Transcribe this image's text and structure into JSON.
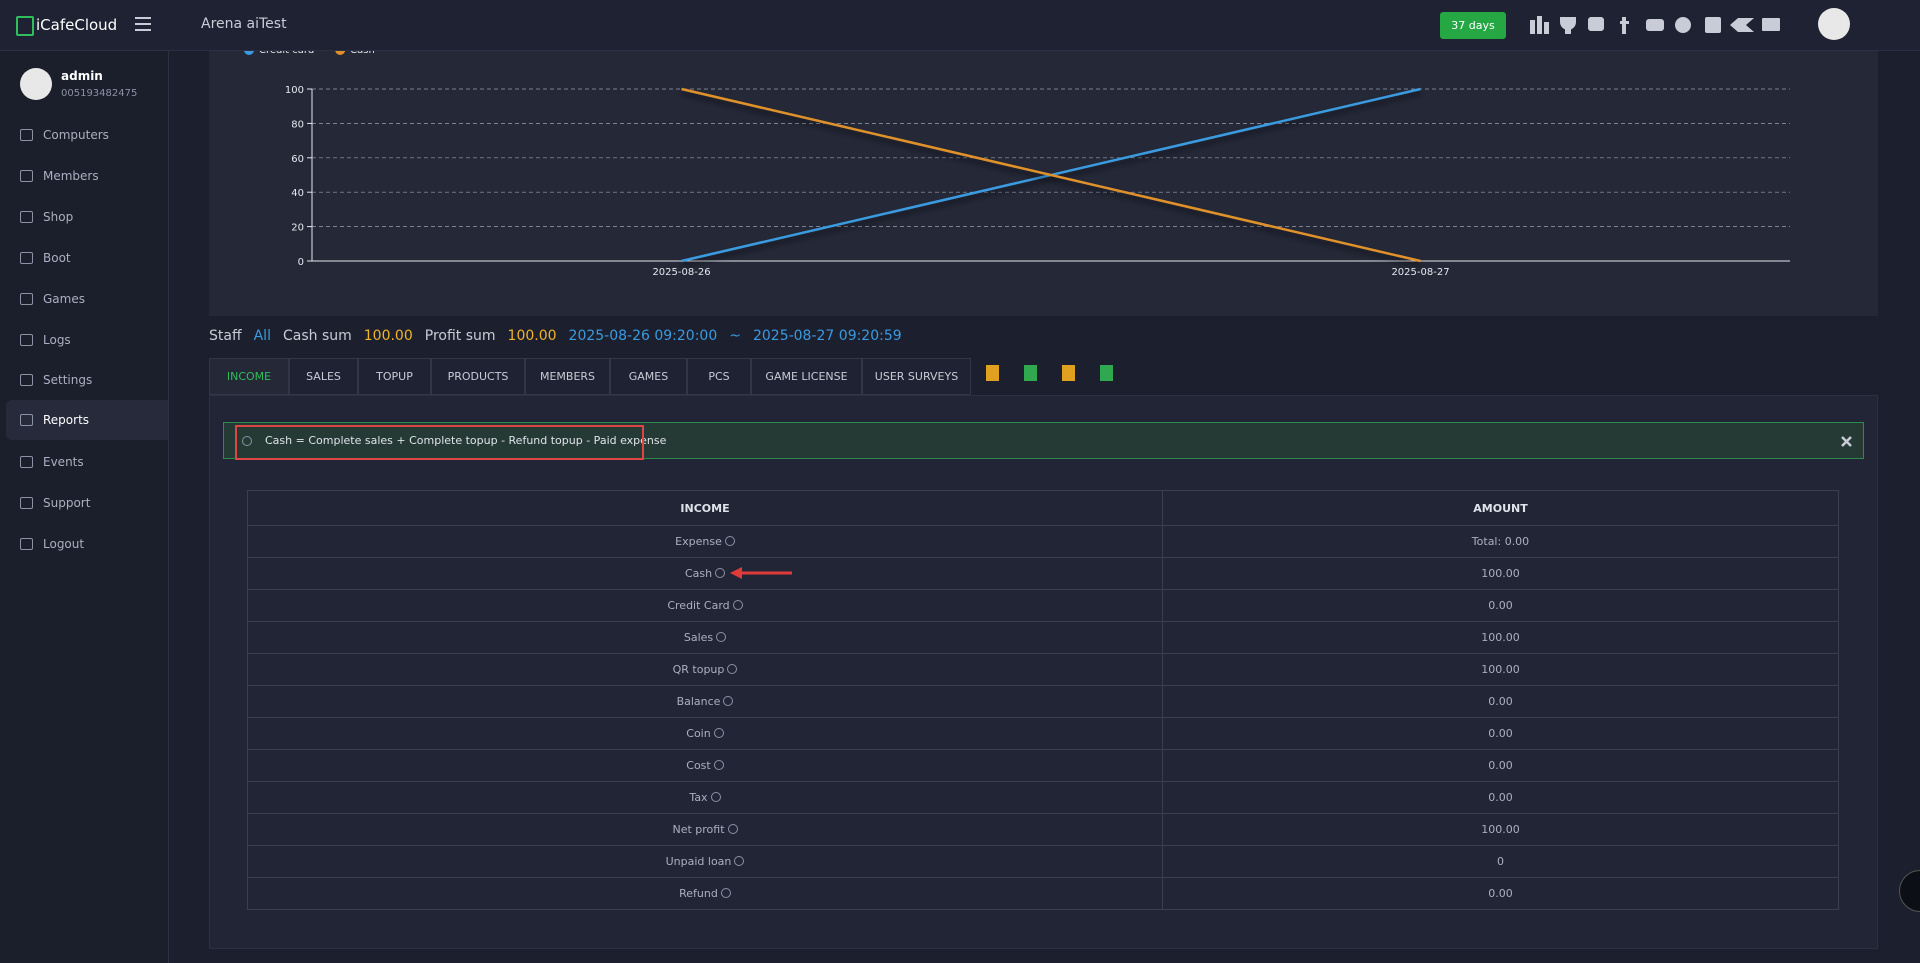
{
  "header": {
    "logo": "iCafeCloud",
    "title": "Arena aiTest",
    "days": "37 days"
  },
  "sidebar": {
    "user": "admin",
    "user_id": "005193482475",
    "menu": [
      "Computers",
      "Members",
      "Shop",
      "Boot",
      "Games",
      "Logs",
      "Settings",
      "Reports",
      "Events",
      "Support",
      "Logout"
    ],
    "active": 7
  },
  "chart_data": {
    "type": "line",
    "categories": [
      "2025-08-26",
      "2025-08-27"
    ],
    "series": [
      {
        "name": "Credit card",
        "color": "#3a9be0",
        "values": [
          0,
          100
        ]
      },
      {
        "name": "Cash",
        "color": "#e0912b",
        "values": [
          100,
          0
        ]
      }
    ],
    "ylim": [
      0,
      100
    ],
    "yticks": [
      0,
      20,
      40,
      60,
      80,
      100
    ],
    "grid": true
  },
  "summary": {
    "staff_label": "Staff",
    "staff": "All",
    "cash_label": "Cash sum",
    "cash": "100.00",
    "profit_label": "Profit sum",
    "profit": "100.00",
    "from": "2025-08-26 09:20:00",
    "sep": "~",
    "to": "2025-08-27 09:20:59"
  },
  "tabs": [
    "INCOME",
    "SALES",
    "TOPUP",
    "PRODUCTS",
    "MEMBERS",
    "GAMES",
    "PCS",
    "GAME LICENSE",
    "USER SURVEYS"
  ],
  "alert": "Cash = Complete sales + Complete topup - Refund topup - Paid expense",
  "table": {
    "headers": [
      "INCOME",
      "AMOUNT"
    ],
    "rows": [
      [
        "Expense",
        "Total: 0.00"
      ],
      [
        "Cash",
        "100.00"
      ],
      [
        "Credit Card",
        "0.00"
      ],
      [
        "Sales",
        "100.00"
      ],
      [
        "QR topup",
        "100.00"
      ],
      [
        "Balance",
        "0.00"
      ],
      [
        "Coin",
        "0.00"
      ],
      [
        "Cost",
        "0.00"
      ],
      [
        "Tax",
        "0.00"
      ],
      [
        "Net profit",
        "100.00"
      ],
      [
        "Unpaid loan",
        "0"
      ],
      [
        "Refund",
        "0.00"
      ]
    ]
  }
}
